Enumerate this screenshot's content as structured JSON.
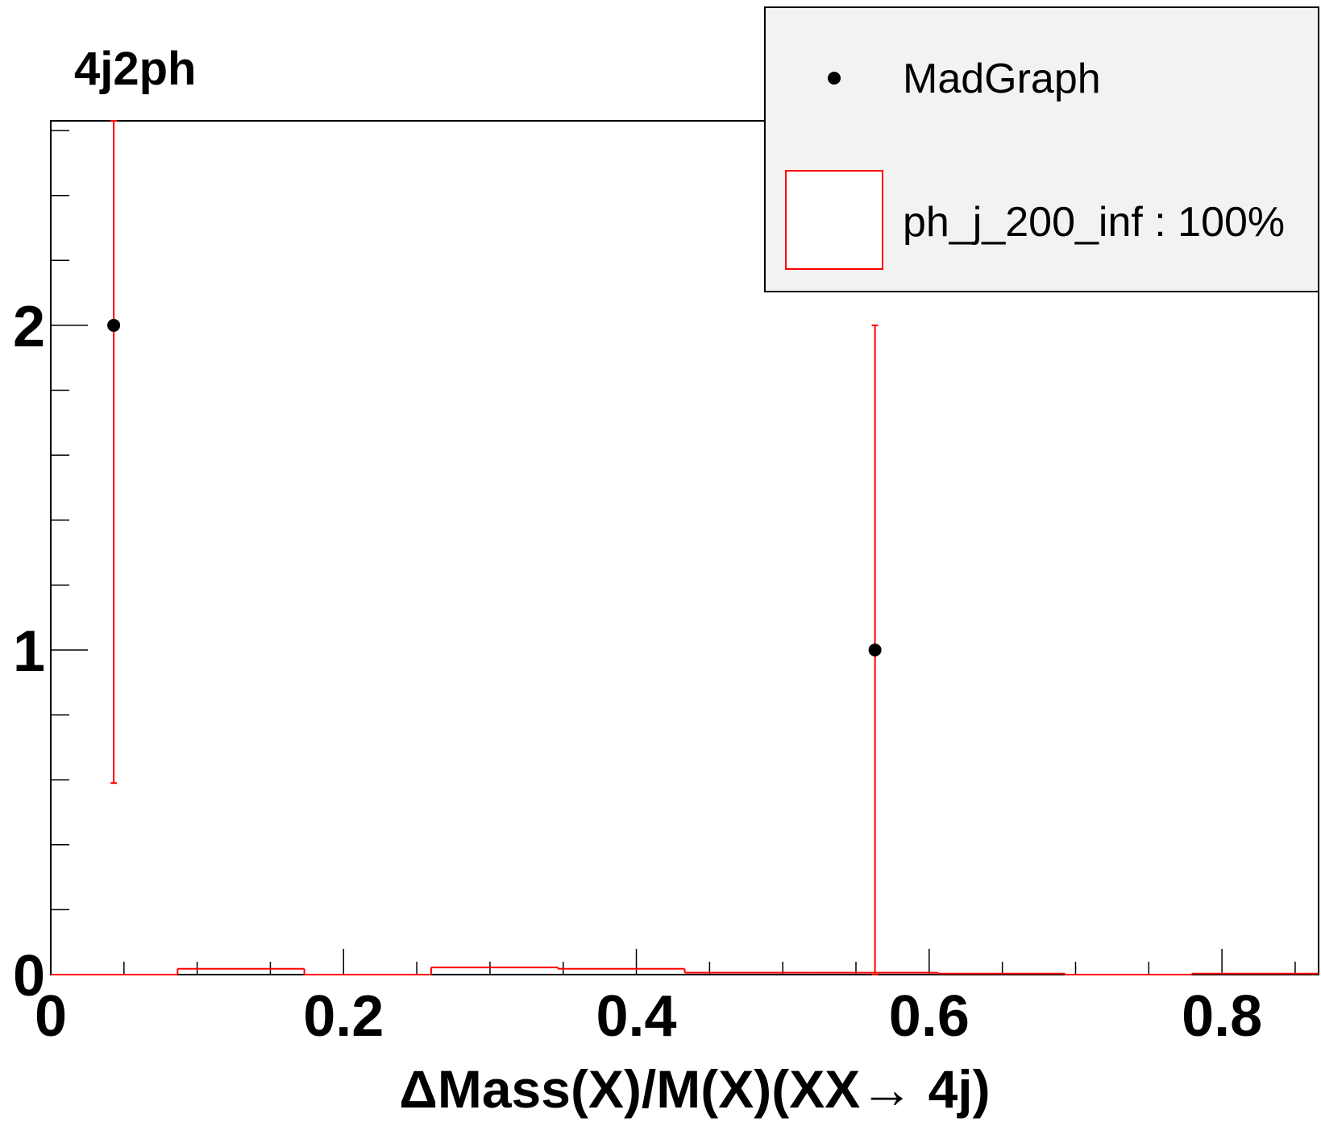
{
  "chart_data": {
    "type": "histogram",
    "title": "4j2ph",
    "xlabel": "ΔMass(X)/M(X)(XX→ 4j)",
    "ylabel": "",
    "xlim": [
      0,
      0.866
    ],
    "ylim": [
      0,
      2.63
    ],
    "x_ticks": [
      "0",
      "0.2",
      "0.4",
      "0.6",
      "0.8"
    ],
    "y_ticks": [
      "0",
      "1",
      "2"
    ],
    "legend_position": "top-right",
    "series": [
      {
        "name": "MadGraph",
        "kind": "points",
        "color": "#000000",
        "points": [
          {
            "x": 0.043,
            "y": 2
          },
          {
            "x": 0.563,
            "y": 1
          }
        ]
      },
      {
        "name": "ph_j_200_inf : 100%",
        "kind": "step-histogram",
        "color": "#ff0000",
        "bin_width": 0.0866,
        "bins": [
          {
            "x0": 0.0,
            "x1": 0.0866,
            "y": 0.0
          },
          {
            "x0": 0.0866,
            "x1": 0.1732,
            "y": 0.018
          },
          {
            "x0": 0.1732,
            "x1": 0.2598,
            "y": 0.0
          },
          {
            "x0": 0.2598,
            "x1": 0.3464,
            "y": 0.022
          },
          {
            "x0": 0.3464,
            "x1": 0.433,
            "y": 0.018
          },
          {
            "x0": 0.433,
            "x1": 0.5196,
            "y": 0.006
          },
          {
            "x0": 0.5196,
            "x1": 0.6062,
            "y": 0.006
          },
          {
            "x0": 0.6062,
            "x1": 0.6928,
            "y": 0.003
          },
          {
            "x0": 0.6928,
            "x1": 0.7794,
            "y": 0.0
          },
          {
            "x0": 0.7794,
            "x1": 0.866,
            "y": 0.003
          }
        ],
        "error_bars": [
          {
            "x": 0.043,
            "low": 0.59,
            "high": 2.63
          },
          {
            "x": 0.563,
            "low": 0.0,
            "high": 2.0
          }
        ]
      }
    ]
  }
}
